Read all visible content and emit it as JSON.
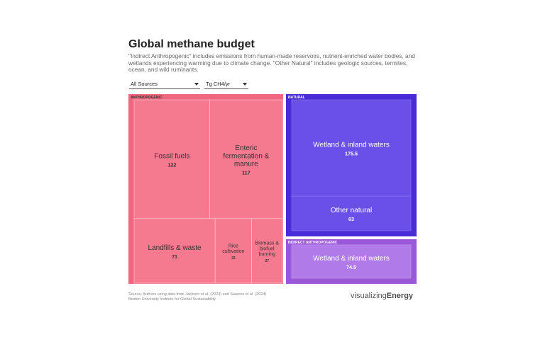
{
  "title": "Global methane budget",
  "description": "\"Indirect Anthropogenic\" includes emissions from human-made reservoirs, nutrient-enriched water bodies, and wetlands experiencing warming due to climate change. \"Other Natural\" includes geologic sources, termites, ocean, and wild ruminants.",
  "controls": {
    "source_select": "All Sources",
    "unit_select": "Tg CH4/yr"
  },
  "footer": {
    "source_line1": "Source: Authors using data from Jackson et al. (2024) and Saunois et al. (2024)",
    "source_line2": "Boston University Institute for Global Sustainability",
    "brand_light": "visualizing",
    "brand_bold": "Energy"
  },
  "colors": {
    "anthropogenic": "#f0677f",
    "anthropogenic_inner": "#f57a90",
    "anthropogenic_stroke": "#ffd0d8",
    "natural_outer": "#4a2bd8",
    "natural_inner": "#6a50e8",
    "indirect_outer": "#9a58d8",
    "indirect_inner": "#b07ae8",
    "text_dark": "#333333",
    "text_light": "#ffffff"
  },
  "chart_data": {
    "type": "treemap",
    "unit": "Tg CH4/yr",
    "groups": [
      {
        "name": "ANTHROPOGENIC",
        "items": [
          {
            "label": "Fossil fuels",
            "value": 122
          },
          {
            "label": "Enteric fermentation & manure",
            "value": 117
          },
          {
            "label": "Landfills & waste",
            "value": 71
          },
          {
            "label": "Rice cultivation",
            "value": 32
          },
          {
            "label": "Biomass & biofuel burning",
            "value": 27
          }
        ]
      },
      {
        "name": "NATURAL",
        "items": [
          {
            "label": "Wetland & inland waters",
            "value": 175.5
          },
          {
            "label": "Other natural",
            "value": 63
          }
        ]
      },
      {
        "name": "INDIRECT ANTHROPOGENIC",
        "items": [
          {
            "label": "Wetland & inland waters",
            "value": 74.5
          }
        ]
      }
    ]
  }
}
